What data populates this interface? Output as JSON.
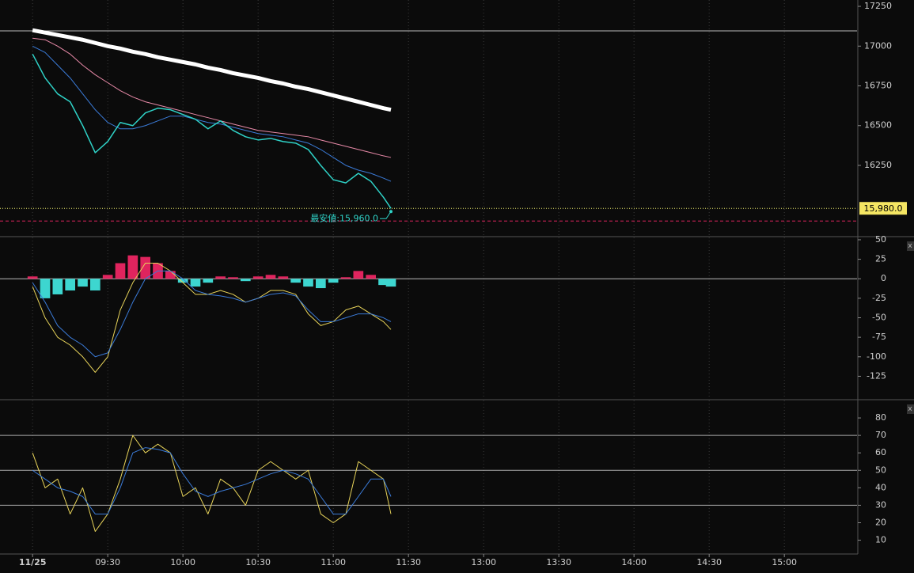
{
  "chart_data": [
    {
      "type": "line",
      "xlim": [
        -13,
        329
      ],
      "ylim": [
        15807,
        17290
      ],
      "yticks": [
        16250,
        16500,
        16750,
        17000,
        17250
      ],
      "x": [
        0,
        5,
        10,
        15,
        20,
        25,
        30,
        35,
        40,
        45,
        50,
        55,
        60,
        65,
        70,
        75,
        80,
        85,
        90,
        95,
        100,
        105,
        110,
        115,
        120,
        125,
        130,
        135,
        140,
        143
      ],
      "series": [
        {
          "color": "#ffffff",
          "width": 5,
          "values": [
            17100,
            17085,
            17070,
            17055,
            17040,
            17020,
            17000,
            16985,
            16965,
            16950,
            16930,
            16915,
            16900,
            16885,
            16865,
            16850,
            16830,
            16815,
            16800,
            16780,
            16765,
            16745,
            16730,
            16710,
            16690,
            16670,
            16650,
            16630,
            16610,
            16600
          ]
        },
        {
          "color": "#e88aa8",
          "width": 1,
          "values": [
            17050,
            17040,
            17000,
            16950,
            16880,
            16820,
            16770,
            16720,
            16680,
            16650,
            16630,
            16610,
            16590,
            16570,
            16550,
            16530,
            16510,
            16490,
            16470,
            16460,
            16450,
            16440,
            16430,
            16410,
            16390,
            16370,
            16350,
            16330,
            16310,
            16300
          ]
        },
        {
          "color": "#3b7bd8",
          "width": 1,
          "values": [
            17000,
            16960,
            16880,
            16800,
            16700,
            16600,
            16520,
            16480,
            16480,
            16500,
            16530,
            16560,
            16560,
            16540,
            16520,
            16510,
            16490,
            16470,
            16450,
            16440,
            16430,
            16410,
            16390,
            16350,
            16300,
            16250,
            16220,
            16200,
            16170,
            16150
          ]
        },
        {
          "color": "#2fd3c8",
          "width": 1.5,
          "values": [
            16950,
            16800,
            16700,
            16650,
            16500,
            16330,
            16400,
            16520,
            16500,
            16580,
            16610,
            16600,
            16570,
            16540,
            16480,
            16530,
            16470,
            16430,
            16410,
            16420,
            16400,
            16390,
            16350,
            16250,
            16160,
            16140,
            16200,
            16150,
            16050,
            15980
          ]
        }
      ],
      "hlines": [
        {
          "value": 17096,
          "color": "#bbbbbb",
          "dash": ""
        },
        {
          "value": 15980,
          "color": "#e8e86a",
          "dash": "1,2"
        },
        {
          "value": 15900,
          "color": "#e0245e",
          "dash": "4,3"
        }
      ],
      "last": {
        "value": 15980,
        "label": "15,980.0"
      },
      "low": {
        "value": 15960,
        "x": 143,
        "label": "最安値:15,960.0"
      }
    },
    {
      "type": "line",
      "xlim": [
        -13,
        329
      ],
      "ylim": [
        -154,
        53
      ],
      "yticks": [
        -125,
        -100,
        -75,
        -50,
        -25,
        0,
        25,
        50
      ],
      "x": [
        0,
        5,
        10,
        15,
        20,
        25,
        30,
        35,
        40,
        45,
        50,
        55,
        60,
        65,
        70,
        75,
        80,
        85,
        90,
        95,
        100,
        105,
        110,
        115,
        120,
        125,
        130,
        135,
        140,
        143
      ],
      "series": [
        {
          "style": "bar",
          "color": "#e0245e",
          "neg_color": "#3dd6d0",
          "values": [
            3,
            -25,
            -20,
            -15,
            -10,
            -15,
            5,
            20,
            30,
            28,
            20,
            10,
            -5,
            -10,
            -5,
            3,
            2,
            -3,
            3,
            5,
            3,
            -5,
            -10,
            -12,
            -5,
            2,
            10,
            5,
            -8,
            -10
          ]
        },
        {
          "color": "#e8d45a",
          "width": 1,
          "values": [
            -10,
            -50,
            -75,
            -85,
            -100,
            -120,
            -100,
            -40,
            -5,
            20,
            20,
            10,
            -5,
            -20,
            -20,
            -15,
            -20,
            -30,
            -25,
            -15,
            -15,
            -20,
            -45,
            -60,
            -55,
            -40,
            -35,
            -45,
            -55,
            -65
          ]
        },
        {
          "color": "#3b7bd8",
          "width": 1,
          "values": [
            -5,
            -30,
            -60,
            -75,
            -85,
            -100,
            -95,
            -65,
            -30,
            0,
            10,
            10,
            0,
            -15,
            -20,
            -22,
            -25,
            -30,
            -25,
            -20,
            -18,
            -22,
            -40,
            -55,
            -55,
            -50,
            -45,
            -45,
            -50,
            -55
          ]
        }
      ],
      "hlines": [
        {
          "value": 0,
          "color": "#bbbbbb",
          "dash": ""
        }
      ]
    },
    {
      "type": "line",
      "xlim": [
        -13,
        329
      ],
      "ylim": [
        3,
        90
      ],
      "yticks": [
        10,
        20,
        30,
        40,
        50,
        60,
        70,
        80
      ],
      "xticks": [
        {
          "value": 0,
          "label": "11/25"
        },
        {
          "value": 30,
          "label": "09:30"
        },
        {
          "value": 60,
          "label": "10:00"
        },
        {
          "value": 90,
          "label": "10:30"
        },
        {
          "value": 120,
          "label": "11:00"
        },
        {
          "value": 150,
          "label": "11:30"
        },
        {
          "value": 180,
          "label": "13:00"
        },
        {
          "value": 210,
          "label": "13:30"
        },
        {
          "value": 240,
          "label": "14:00"
        },
        {
          "value": 270,
          "label": "14:30"
        },
        {
          "value": 300,
          "label": "15:00"
        }
      ],
      "x": [
        0,
        5,
        10,
        15,
        20,
        25,
        30,
        35,
        40,
        45,
        50,
        55,
        60,
        65,
        70,
        75,
        80,
        85,
        90,
        95,
        100,
        105,
        110,
        115,
        120,
        125,
        130,
        135,
        140,
        143
      ],
      "series": [
        {
          "color": "#e8d45a",
          "width": 1,
          "values": [
            60,
            40,
            45,
            25,
            40,
            15,
            25,
            45,
            70,
            60,
            65,
            60,
            35,
            40,
            25,
            45,
            40,
            30,
            50,
            55,
            50,
            45,
            50,
            25,
            20,
            25,
            55,
            50,
            45,
            25
          ]
        },
        {
          "color": "#3b7bd8",
          "width": 1,
          "values": [
            50,
            45,
            40,
            38,
            35,
            25,
            25,
            40,
            60,
            63,
            62,
            60,
            48,
            38,
            35,
            38,
            40,
            42,
            45,
            48,
            50,
            48,
            45,
            35,
            25,
            25,
            35,
            45,
            45,
            35
          ]
        }
      ],
      "hlines": [
        {
          "value": 70,
          "color": "#aaaaaa",
          "dash": ""
        },
        {
          "value": 50,
          "color": "#aaaaaa",
          "dash": ""
        },
        {
          "value": 30,
          "color": "#aaaaaa",
          "dash": ""
        }
      ]
    }
  ]
}
